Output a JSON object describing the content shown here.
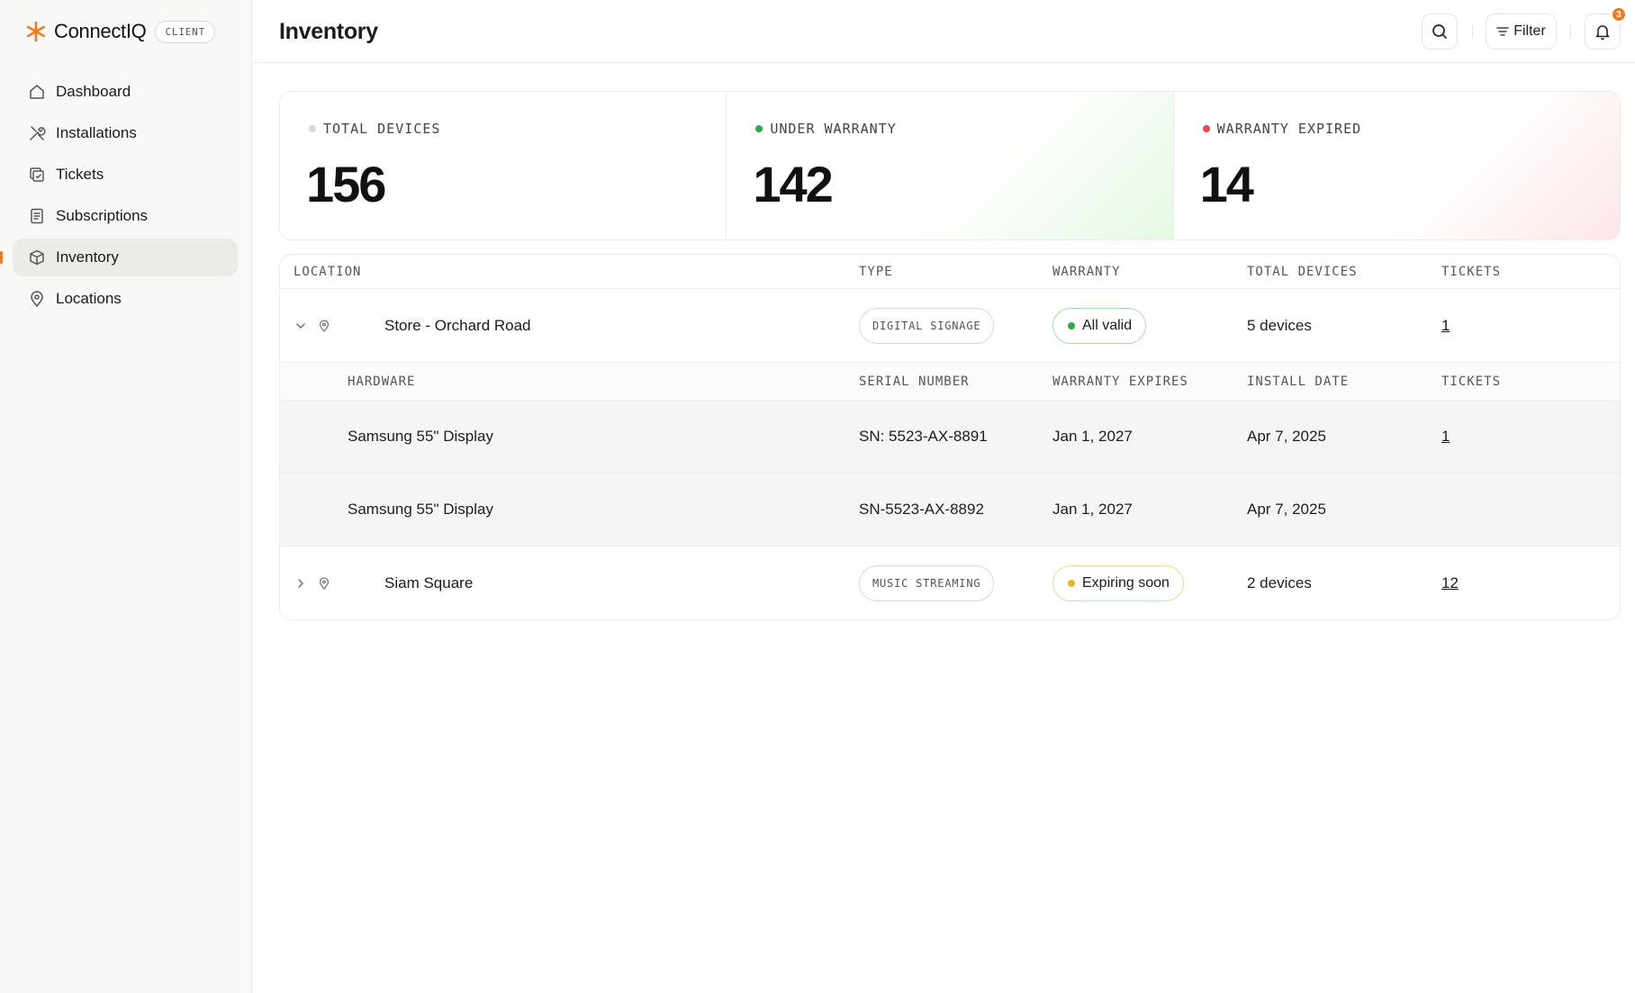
{
  "brand": {
    "name": "ConnectIQ",
    "badge": "CLIENT",
    "accent": "#f07a1e"
  },
  "sidebar": {
    "items": [
      {
        "label": "Dashboard",
        "icon": "home-icon",
        "active": false
      },
      {
        "label": "Installations",
        "icon": "tools-icon",
        "active": false
      },
      {
        "label": "Tickets",
        "icon": "ticket-icon",
        "active": false
      },
      {
        "label": "Subscriptions",
        "icon": "document-icon",
        "active": false
      },
      {
        "label": "Inventory",
        "icon": "box-icon",
        "active": true
      },
      {
        "label": "Locations",
        "icon": "map-pin-icon",
        "active": false
      }
    ]
  },
  "header": {
    "title": "Inventory",
    "filter_label": "Filter",
    "notification_count": "3"
  },
  "stats": [
    {
      "label": "TOTAL DEVICES",
      "value": "156",
      "dot_color": "#d6d6d2"
    },
    {
      "label": "UNDER WARRANTY",
      "value": "142",
      "dot_color": "#2eaa4a"
    },
    {
      "label": "WARRANTY EXPIRED",
      "value": "14",
      "dot_color": "#e5484d"
    }
  ],
  "table": {
    "columns": [
      "LOCATION",
      "TYPE",
      "WARRANTY",
      "TOTAL DEVICES",
      "TICKETS"
    ],
    "locations": [
      {
        "name": "Store - Orchard Road",
        "type": "DIGITAL SIGNAGE",
        "warranty": "All valid",
        "warranty_color": "#2eaa4a",
        "devices": "5 devices",
        "tickets": "1",
        "expanded": true
      },
      {
        "name": "Siam Square",
        "type": "MUSIC STREAMING",
        "warranty": "Expiring soon",
        "warranty_color": "#e8b818",
        "devices": "2 devices",
        "tickets": "12",
        "expanded": false
      }
    ],
    "hardware_columns": [
      "HARDWARE",
      "SERIAL NUMBER",
      "WARRANTY EXPIRES",
      "INSTALL DATE",
      "TICKETS"
    ],
    "hardware": [
      {
        "name": "Samsung 55\" Display",
        "serial": "SN: 5523-AX-8891",
        "expires": "Jan 1, 2027",
        "installed": "Apr 7, 2025",
        "tickets": "1"
      },
      {
        "name": "Samsung 55\" Display",
        "serial": "SN-5523-AX-8892",
        "expires": "Jan 1, 2027",
        "installed": "Apr 7, 2025",
        "tickets": ""
      }
    ]
  }
}
